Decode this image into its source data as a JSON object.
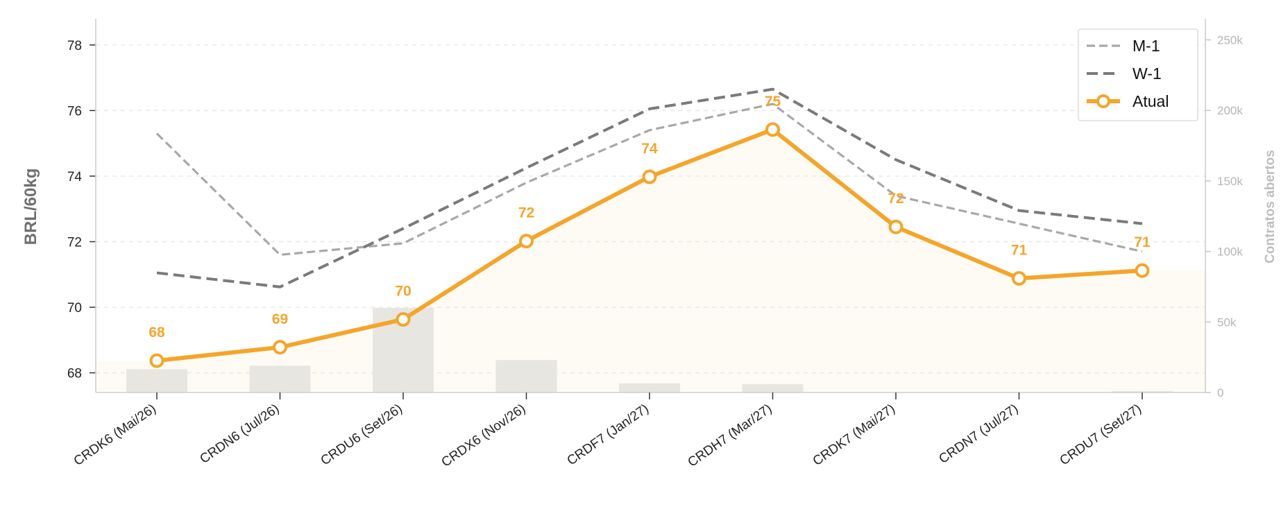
{
  "chart_data": {
    "type": "line",
    "title": "",
    "xlabel": "",
    "ylabel": "BRL/60kg",
    "y2label": "Contratos abertos",
    "categories": [
      "CRDK6 (Mai/26)",
      "CRDN6 (Jul/26)",
      "CRDU6 (Set/26)",
      "CRDX6 (Nov/26)",
      "CRDF7 (Jan/27)",
      "CRDH7 (Mar/27)",
      "CRDK7 (Mai/27)",
      "CRDN7 (Jul/27)",
      "CRDU7 (Set/27)"
    ],
    "ylim": [
      67.4,
      78.8
    ],
    "yticks": [
      68,
      70,
      72,
      74,
      76,
      78
    ],
    "y2lim": [
      0,
      265000
    ],
    "y2ticks": [
      0,
      50000,
      100000,
      150000,
      200000,
      250000
    ],
    "y2tick_labels": [
      "0",
      "50k",
      "100k",
      "150k",
      "200k",
      "250k"
    ],
    "grid": "horizontal dashed",
    "legend_position": "top-right",
    "series": [
      {
        "name": "M-1",
        "style": "dash-dot light gray",
        "color": "#a8a8a8",
        "values": [
          75.3,
          71.6,
          71.95,
          73.8,
          75.4,
          76.2,
          73.4,
          72.55,
          71.7
        ]
      },
      {
        "name": "W-1",
        "style": "dashed gray",
        "color": "#7a7a7a",
        "values": [
          71.05,
          70.62,
          72.4,
          74.25,
          76.05,
          76.65,
          74.5,
          72.95,
          72.55
        ]
      },
      {
        "name": "Atual",
        "style": "solid with markers",
        "color": "#f5a52a",
        "values": [
          68.37,
          68.78,
          69.63,
          72.02,
          73.98,
          75.42,
          72.45,
          70.88,
          71.12
        ],
        "data_labels": [
          "68",
          "69",
          "70",
          "72",
          "74",
          "75",
          "72",
          "71",
          "71"
        ]
      }
    ],
    "open_interest": {
      "name": "Contratos abertos",
      "color": "#e8e6e1",
      "values": [
        16500,
        19000,
        60000,
        23000,
        6500,
        6000,
        0,
        0,
        1000
      ]
    },
    "colors": {
      "accent": "#f5a52a",
      "fill": "#fdfbf3",
      "grid": "#e7e7e7",
      "axis": "#bbbbbb"
    }
  }
}
